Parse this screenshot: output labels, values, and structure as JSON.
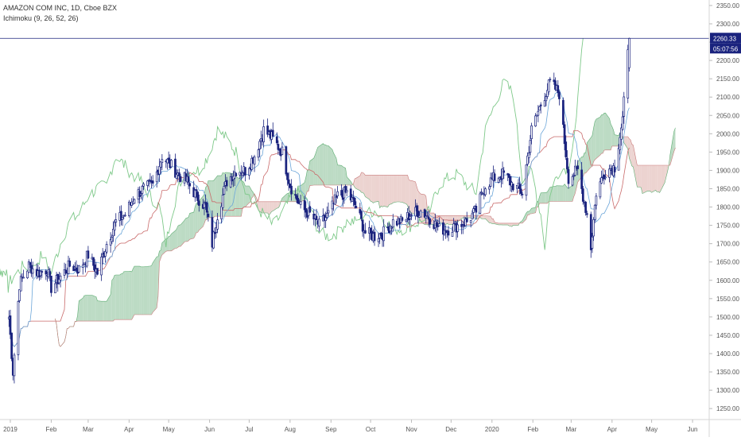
{
  "legend": {
    "symbol_line": "AMAZON COM INC, 1D, Cboe BZX",
    "indicator_line": "Ichimoku (9, 26, 52, 26)"
  },
  "price_badge": {
    "price": "2260.33",
    "countdown": "05:07:56",
    "color": "#1a237e"
  },
  "colors": {
    "candle": "#1a237e",
    "conversion_line": "#6ca6d9",
    "base_line": "#c96a6a",
    "lagging_span": "#7fc98a",
    "cloud_bull": "#a5cfb0",
    "cloud_bear": "#e6c4c0",
    "price_line": "#1a237e",
    "axis_text": "#555555",
    "axis_line": "#d5d5d5"
  },
  "chart_data": {
    "type": "candlestick",
    "title": "AMAZON COM INC, 1D, Cboe BZX",
    "indicator": "Ichimoku (9, 26, 52, 26)",
    "y_axis": {
      "position": "right",
      "ticks": [
        "1250.00",
        "1300.00",
        "1350.00",
        "1400.00",
        "1450.00",
        "1500.00",
        "1550.00",
        "1600.00",
        "1650.00",
        "1700.00",
        "1750.00",
        "1800.00",
        "1850.00",
        "1900.00",
        "1950.00",
        "2000.00",
        "2050.00",
        "2100.00",
        "2150.00",
        "2200.00",
        "2250.00",
        "2300.00",
        "2350.00"
      ],
      "ylim": [
        1220,
        2365
      ]
    },
    "x_axis": {
      "ticks": [
        "2019",
        "Feb",
        "Mar",
        "Apr",
        "May",
        "Jun",
        "Jul",
        "Aug",
        "Sep",
        "Oct",
        "Nov",
        "Dec",
        "2020",
        "Feb",
        "Mar",
        "Apr",
        "May",
        "Jun"
      ]
    },
    "last_price": 2260.33,
    "close_path": [
      [
        "2018-12-31",
        1500
      ],
      [
        "2019-01-03",
        1350
      ],
      [
        "2019-01-08",
        1590
      ],
      [
        "2019-01-15",
        1640
      ],
      [
        "2019-01-22",
        1620
      ],
      [
        "2019-01-29",
        1630
      ],
      [
        "2019-02-01",
        1580
      ],
      [
        "2019-02-08",
        1610
      ],
      [
        "2019-02-15",
        1640
      ],
      [
        "2019-02-22",
        1630
      ],
      [
        "2019-03-01",
        1670
      ],
      [
        "2019-03-08",
        1620
      ],
      [
        "2019-03-15",
        1700
      ],
      [
        "2019-03-22",
        1760
      ],
      [
        "2019-03-29",
        1780
      ],
      [
        "2019-04-05",
        1830
      ],
      [
        "2019-04-12",
        1850
      ],
      [
        "2019-04-19",
        1860
      ],
      [
        "2019-04-26",
        1940
      ],
      [
        "2019-05-01",
        1920
      ],
      [
        "2019-05-08",
        1890
      ],
      [
        "2019-05-15",
        1870
      ],
      [
        "2019-05-22",
        1830
      ],
      [
        "2019-05-29",
        1800
      ],
      [
        "2019-06-03",
        1700
      ],
      [
        "2019-06-07",
        1780
      ],
      [
        "2019-06-14",
        1870
      ],
      [
        "2019-06-21",
        1900
      ],
      [
        "2019-06-28",
        1900
      ],
      [
        "2019-07-05",
        1940
      ],
      [
        "2019-07-12",
        2010
      ],
      [
        "2019-07-18",
        1990
      ],
      [
        "2019-07-26",
        1950
      ],
      [
        "2019-08-01",
        1860
      ],
      [
        "2019-08-09",
        1800
      ],
      [
        "2019-08-16",
        1780
      ],
      [
        "2019-08-23",
        1750
      ],
      [
        "2019-08-30",
        1780
      ],
      [
        "2019-09-06",
        1830
      ],
      [
        "2019-09-13",
        1840
      ],
      [
        "2019-09-20",
        1800
      ],
      [
        "2019-09-27",
        1730
      ],
      [
        "2019-10-04",
        1720
      ],
      [
        "2019-10-11",
        1730
      ],
      [
        "2019-10-18",
        1760
      ],
      [
        "2019-10-25",
        1760
      ],
      [
        "2019-10-31",
        1780
      ],
      [
        "2019-11-08",
        1790
      ],
      [
        "2019-11-15",
        1770
      ],
      [
        "2019-11-22",
        1740
      ],
      [
        "2019-11-29",
        1740
      ],
      [
        "2019-12-06",
        1750
      ],
      [
        "2019-12-13",
        1760
      ],
      [
        "2019-12-20",
        1790
      ],
      [
        "2019-12-27",
        1860
      ],
      [
        "2020-01-03",
        1880
      ],
      [
        "2020-01-10",
        1890
      ],
      [
        "2020-01-17",
        1860
      ],
      [
        "2020-01-24",
        1840
      ],
      [
        "2020-01-31",
        2010
      ],
      [
        "2020-02-07",
        2080
      ],
      [
        "2020-02-14",
        2140
      ],
      [
        "2020-02-21",
        2110
      ],
      [
        "2020-02-28",
        1880
      ],
      [
        "2020-03-06",
        1900
      ],
      [
        "2020-03-13",
        1780
      ],
      [
        "2020-03-16",
        1690
      ],
      [
        "2020-03-20",
        1840
      ],
      [
        "2020-03-27",
        1900
      ],
      [
        "2020-04-03",
        1910
      ],
      [
        "2020-04-09",
        2040
      ],
      [
        "2020-04-14",
        2260
      ]
    ],
    "cloud_visible_until": "2020-05-20",
    "price_line": 2260.33
  }
}
